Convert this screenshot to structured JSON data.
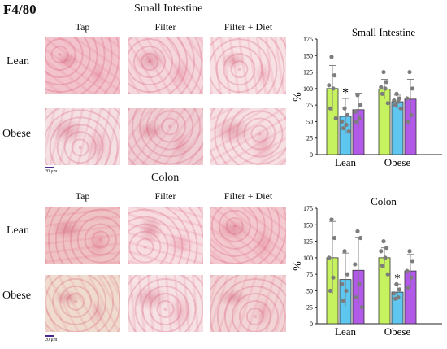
{
  "figure_label": "F4/80",
  "colors": {
    "lime": "#c7f25f",
    "blue": "#5ec6ef",
    "purple": "#b25ae8",
    "point": "#7d7d7d"
  },
  "panels": [
    {
      "title": "Small Intestine",
      "columns": [
        "Tap",
        "Filter",
        "Filter + Diet"
      ],
      "rows": [
        "Lean",
        "Obese"
      ],
      "scale_label": "20 μm",
      "tile_tones": [
        [
          "#f2c3cc",
          "#f5d6dc",
          "#f7e1e4"
        ],
        [
          "#f4dfe3",
          "#efcdd3",
          "#f6e0e3"
        ]
      ]
    },
    {
      "title": "Colon",
      "columns": [
        "Tap",
        "Filter",
        "Filter + Diet"
      ],
      "rows": [
        "Lean",
        "Obese"
      ],
      "scale_label": "20 μm",
      "tile_tones": [
        [
          "#efc2c4",
          "#f7dde1",
          "#f3c9cf"
        ],
        [
          "#efdccf",
          "#f6e2e5",
          "#f2d4d6"
        ]
      ]
    }
  ],
  "chart_data": [
    {
      "type": "bar",
      "title": "Small Intestine",
      "ylabel": "%",
      "ylim": [
        0,
        175
      ],
      "yticks": [
        "0",
        "25",
        "50",
        "75",
        "100",
        "125",
        "150",
        "175"
      ],
      "categories": [
        "Lean",
        "Obese"
      ],
      "series": [
        {
          "color": "lime",
          "values": [
            100,
            99
          ],
          "errors": [
            35,
            15
          ],
          "points": [
            [
              148,
              120,
              105,
              100,
              70,
              55
            ],
            [
              125,
              110,
              102,
              100,
              92,
              78
            ]
          ]
        },
        {
          "color": "blue",
          "values": [
            58,
            80
          ],
          "errors": [
            27,
            10
          ],
          "points": [
            [
              70,
              60,
              50,
              45,
              40,
              35
            ],
            [
              92,
              85,
              82,
              80,
              75,
              70
            ]
          ]
        },
        {
          "color": "purple",
          "values": [
            68,
            84
          ],
          "errors": [
            25,
            30
          ],
          "points": [
            [
              90,
              75,
              65,
              55,
              50
            ],
            [
              125,
              100,
              85,
              60,
              50
            ]
          ]
        }
      ],
      "annotations": [
        {
          "text": "*",
          "category": 0,
          "series": 1
        }
      ]
    },
    {
      "type": "bar",
      "title": "Colon",
      "ylabel": "%",
      "ylim": [
        0,
        175
      ],
      "yticks": [
        "0",
        "25",
        "50",
        "75",
        "100",
        "125",
        "150",
        "175"
      ],
      "categories": [
        "Lean",
        "Obese"
      ],
      "series": [
        {
          "color": "lime",
          "values": [
            100,
            100
          ],
          "errors": [
            55,
            15
          ],
          "points": [
            [
              158,
              130,
              100,
              70,
              50
            ],
            [
              125,
              115,
              110,
              100,
              88,
              75
            ]
          ]
        },
        {
          "color": "blue",
          "values": [
            67,
            48
          ],
          "errors": [
            40,
            12
          ],
          "points": [
            [
              110,
              75,
              60,
              50,
              35
            ],
            [
              60,
              52,
              46,
              40,
              38
            ]
          ]
        },
        {
          "color": "purple",
          "values": [
            81,
            80
          ],
          "errors": [
            50,
            25
          ],
          "points": [
            [
              140,
              130,
              90,
              60,
              40,
              25
            ],
            [
              110,
              95,
              80,
              70,
              55
            ]
          ]
        }
      ],
      "annotations": [
        {
          "text": "*",
          "category": 1,
          "series": 1
        }
      ]
    }
  ]
}
